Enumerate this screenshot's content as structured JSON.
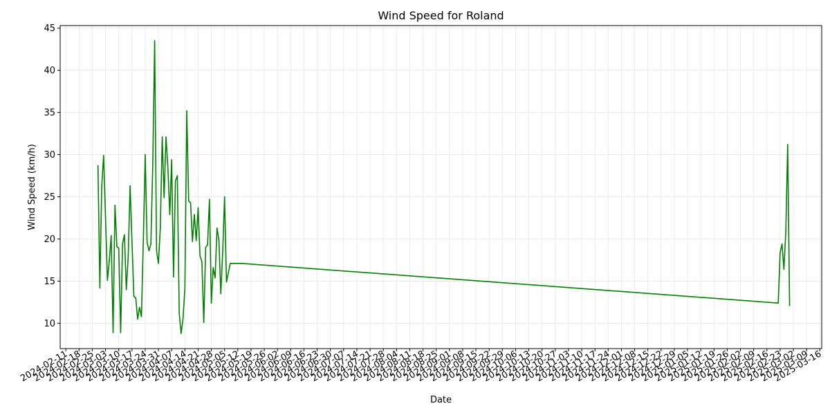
{
  "chart_data": {
    "type": "line",
    "title": "Wind Speed for Roland",
    "xlabel": "Date",
    "ylabel": "Wind Speed (km/h)",
    "x_type": "date",
    "xlim": [
      "2024-02-08",
      "2025-03-17"
    ],
    "ylim": [
      7,
      45.3
    ],
    "y_ticks": [
      10,
      15,
      20,
      25,
      30,
      35,
      40,
      45
    ],
    "x_ticks": [
      "2024-02-11",
      "2024-02-18",
      "2024-02-25",
      "2024-03-03",
      "2024-03-10",
      "2024-03-17",
      "2024-03-24",
      "2024-03-31",
      "2024-04-07",
      "2024-04-14",
      "2024-04-21",
      "2024-04-28",
      "2024-05-05",
      "2024-05-12",
      "2024-05-19",
      "2024-05-26",
      "2024-06-02",
      "2024-06-09",
      "2024-06-16",
      "2024-06-23",
      "2024-06-30",
      "2024-07-07",
      "2024-07-14",
      "2024-07-21",
      "2024-07-28",
      "2024-08-04",
      "2024-08-11",
      "2024-08-18",
      "2024-08-25",
      "2024-09-01",
      "2024-09-08",
      "2024-09-15",
      "2024-09-22",
      "2024-09-29",
      "2024-10-06",
      "2024-10-13",
      "2024-10-20",
      "2024-10-27",
      "2024-11-03",
      "2024-11-10",
      "2024-11-17",
      "2024-11-24",
      "2024-12-01",
      "2024-12-08",
      "2024-12-15",
      "2024-12-22",
      "2024-12-29",
      "2025-01-05",
      "2025-01-12",
      "2025-01-19",
      "2025-01-26",
      "2025-02-02",
      "2025-02-09",
      "2025-02-16",
      "2025-02-23",
      "2025-03-02",
      "2025-03-09",
      "2025-03-16"
    ],
    "grid": true,
    "series": [
      {
        "color": "#008000",
        "x": [
          "2024-02-28",
          "2024-02-29",
          "2024-03-01",
          "2024-03-02",
          "2024-03-03",
          "2024-03-04",
          "2024-03-05",
          "2024-03-06",
          "2024-03-07",
          "2024-03-08",
          "2024-03-09",
          "2024-03-10",
          "2024-03-11",
          "2024-03-12",
          "2024-03-13",
          "2024-03-14",
          "2024-03-15",
          "2024-03-16",
          "2024-03-17",
          "2024-03-18",
          "2024-03-19",
          "2024-03-20",
          "2024-03-21",
          "2024-03-22",
          "2024-03-23",
          "2024-03-24",
          "2024-03-25",
          "2024-03-26",
          "2024-03-27",
          "2024-03-28",
          "2024-03-29",
          "2024-03-30",
          "2024-03-31",
          "2024-04-01",
          "2024-04-02",
          "2024-04-03",
          "2024-04-04",
          "2024-04-05",
          "2024-04-06",
          "2024-04-07",
          "2024-04-08",
          "2024-04-09",
          "2024-04-10",
          "2024-04-11",
          "2024-04-12",
          "2024-04-13",
          "2024-04-14",
          "2024-04-15",
          "2024-04-16",
          "2024-04-17",
          "2024-04-18",
          "2024-04-19",
          "2024-04-20",
          "2024-04-21",
          "2024-04-22",
          "2024-04-23",
          "2024-04-24",
          "2024-04-25",
          "2024-04-26",
          "2024-04-27",
          "2024-04-28",
          "2024-04-29",
          "2024-04-30",
          "2024-05-01",
          "2024-05-02",
          "2024-05-03",
          "2024-05-04",
          "2024-05-05",
          "2024-05-06",
          "2024-05-07",
          "2024-05-08",
          "2024-05-09",
          "2024-05-10",
          "2024-05-11",
          "2024-05-12",
          "2024-05-13",
          "2024-05-14",
          "2025-02-22",
          "2025-02-23",
          "2025-02-24",
          "2025-02-25",
          "2025-02-26",
          "2025-02-27",
          "2025-02-28"
        ],
        "y": [
          28.7,
          14.2,
          26.3,
          29.9,
          22.5,
          15.1,
          17.4,
          20.4,
          8.9,
          24.0,
          19.1,
          18.9,
          8.9,
          19.4,
          20.5,
          14.0,
          17.9,
          26.3,
          19.7,
          13.2,
          13.0,
          10.5,
          11.9,
          10.8,
          19.8,
          30.0,
          19.6,
          18.6,
          19.4,
          28.8,
          43.5,
          18.6,
          17.1,
          21.3,
          32.1,
          24.9,
          32.1,
          28.5,
          22.9,
          29.4,
          15.5,
          26.9,
          27.5,
          11.2,
          8.8,
          10.5,
          14.2,
          35.2,
          24.5,
          24.3,
          19.7,
          22.9,
          19.8,
          23.7,
          18.0,
          17.3,
          10.1,
          19.0,
          19.3,
          24.7,
          12.4,
          16.6,
          15.4,
          21.3,
          19.9,
          13.5,
          18.4,
          25.0,
          14.9,
          16.0,
          17.1,
          17.1,
          17.1,
          17.1,
          17.1,
          17.1,
          17.1,
          12.4,
          18.4,
          19.4,
          16.4,
          20.8,
          31.2,
          12.1
        ]
      }
    ]
  }
}
